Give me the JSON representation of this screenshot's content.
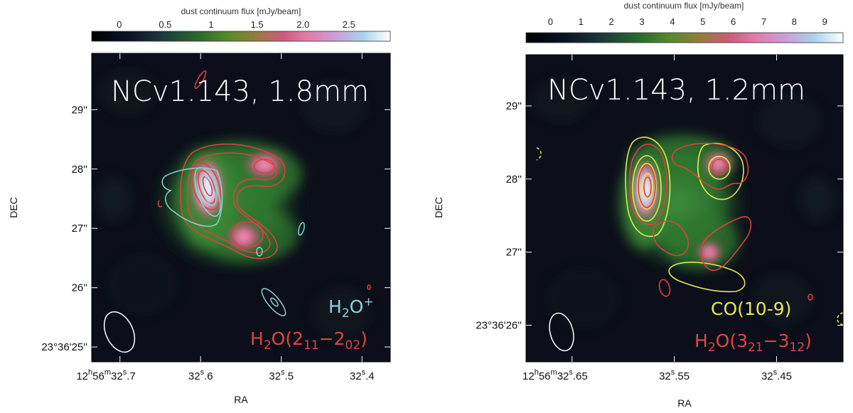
{
  "chart_data": [
    {
      "type": "heatmap",
      "title": "NCv1.143, 1.8mm",
      "colorbar": {
        "label": "dust continuum flux [mJy/beam]",
        "ticks": [
          "0",
          "0.5",
          "1",
          "1.5",
          "2.0",
          "2.5"
        ],
        "range": [
          -0.3,
          2.95
        ]
      },
      "xlabel": "RA",
      "ylabel": "DEC",
      "xticks": [
        "12h56m32s.7",
        "32s.6",
        "32s.5",
        "32s.4"
      ],
      "yticks": [
        "23°36'25''",
        "26''",
        "27''",
        "28''",
        "29''"
      ],
      "x_range_s": [
        32.735,
        32.365
      ],
      "y_range_arcsec": [
        24.75,
        29.95
      ],
      "legend": [
        {
          "name": "H2O+",
          "color": "#8fd1d9"
        },
        {
          "name": "H2O(211-202)",
          "color": "#e04545"
        }
      ]
    },
    {
      "type": "heatmap",
      "title": "NCv1.143, 1.2mm",
      "colorbar": {
        "label": "dust continuum flux [mJy/beam]",
        "ticks": [
          "0",
          "1",
          "2",
          "3",
          "4",
          "5",
          "6",
          "7",
          "8",
          "9"
        ],
        "range": [
          -0.8,
          9.6
        ]
      },
      "xlabel": "RA",
      "ylabel": "DEC",
      "xticks": [
        "12h56m32s.65",
        "32s.55",
        "32s.45"
      ],
      "yticks": [
        "23°36'26''",
        "27''",
        "28''",
        "29''"
      ],
      "x_range_s": [
        32.695,
        32.385
      ],
      "y_range_arcsec": [
        25.5,
        29.7
      ],
      "legend": [
        {
          "name": "CO(10-9)",
          "color": "#e6e653"
        },
        {
          "name": "H2O(321-312)",
          "color": "#e04545"
        }
      ]
    }
  ]
}
